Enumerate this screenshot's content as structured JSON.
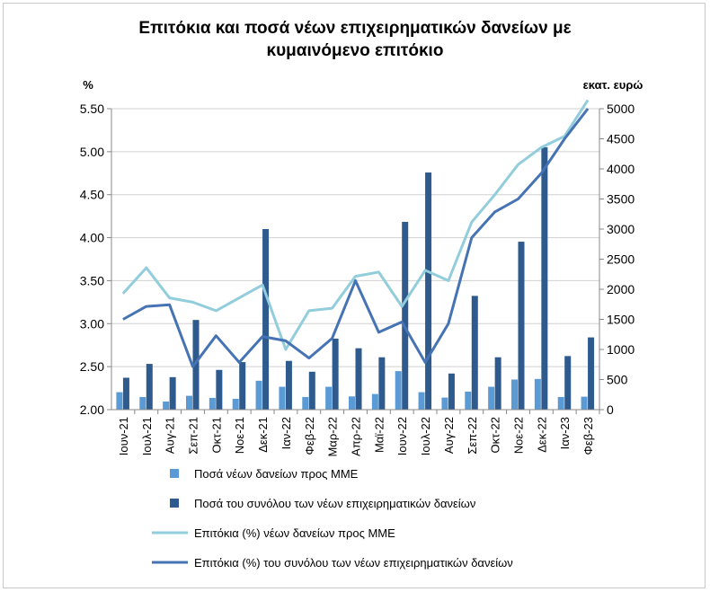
{
  "chart_data": {
    "type": "bar",
    "title_line1": "Επιτόκια και ποσά νέων επιχειρηματικών δανείων με",
    "title_line2": "κυμαινόμενο επιτόκιο",
    "ylabel_left": "%",
    "ylabel_right": "εκατ. ευρώ",
    "ylim_left": [
      2.0,
      5.5
    ],
    "ylim_right": [
      0,
      5000
    ],
    "yticks_left": [
      "2.00",
      "2.50",
      "3.00",
      "3.50",
      "4.00",
      "4.50",
      "5.00",
      "5.50"
    ],
    "yticks_right": [
      "0",
      "500",
      "1000",
      "1500",
      "2000",
      "2500",
      "3000",
      "3500",
      "4000",
      "4500",
      "5000"
    ],
    "grid": "horizontal",
    "legend_position": "bottom",
    "categories": [
      "Ιουν-21",
      "Ιουλ-21",
      "Αυγ-21",
      "Σεπ-21",
      "Οκτ-21",
      "Νοε-21",
      "Δεκ-21",
      "Ιαν-22",
      "Φεβ-22",
      "Μαρ-22",
      "Απρ-22",
      "Μαϊ-22",
      "Ιουν-22",
      "Ιουλ-22",
      "Αυγ-22",
      "Σεπ-22",
      "Οκτ-22",
      "Νοε-22",
      "Δεκ-22",
      "Ιαν-23",
      "Φεβ-23"
    ],
    "series": [
      {
        "name": "Ποσά νέων δανείων προς ΜΜΕ",
        "type": "bar",
        "axis": "right",
        "color": "#5b9bd5",
        "values": [
          290,
          210,
          135,
          230,
          195,
          180,
          480,
          380,
          210,
          380,
          220,
          260,
          640,
          290,
          200,
          300,
          380,
          500,
          510,
          210,
          215
        ]
      },
      {
        "name": "Ποσά του συνόλου των νέων επιχειρηματικών δανείων",
        "type": "bar",
        "axis": "right",
        "color": "#2e5a8e",
        "values": [
          530,
          760,
          540,
          1490,
          660,
          790,
          3000,
          810,
          630,
          1180,
          1020,
          870,
          3120,
          3940,
          600,
          1890,
          870,
          2790,
          4360,
          890,
          1200
        ]
      },
      {
        "name": "Επιτόκια (%) νέων δανείων προς ΜΜΕ",
        "type": "line",
        "axis": "left",
        "color": "#92cddc",
        "values": [
          3.35,
          3.65,
          3.3,
          3.25,
          3.15,
          3.3,
          3.45,
          2.7,
          3.15,
          3.18,
          3.55,
          3.6,
          3.2,
          3.62,
          3.5,
          4.18,
          4.5,
          4.85,
          5.05,
          5.18,
          5.6
        ]
      },
      {
        "name": "Επιτόκια (%) του συνόλου των νέων επιχειρηματικών δανείων",
        "type": "line",
        "axis": "left",
        "color": "#4573b4",
        "values": [
          3.05,
          3.2,
          3.22,
          2.5,
          2.86,
          2.55,
          2.85,
          2.8,
          2.6,
          2.83,
          3.5,
          2.9,
          3.02,
          2.55,
          3.0,
          4.0,
          4.3,
          4.45,
          4.75,
          5.15,
          5.5
        ]
      }
    ]
  }
}
